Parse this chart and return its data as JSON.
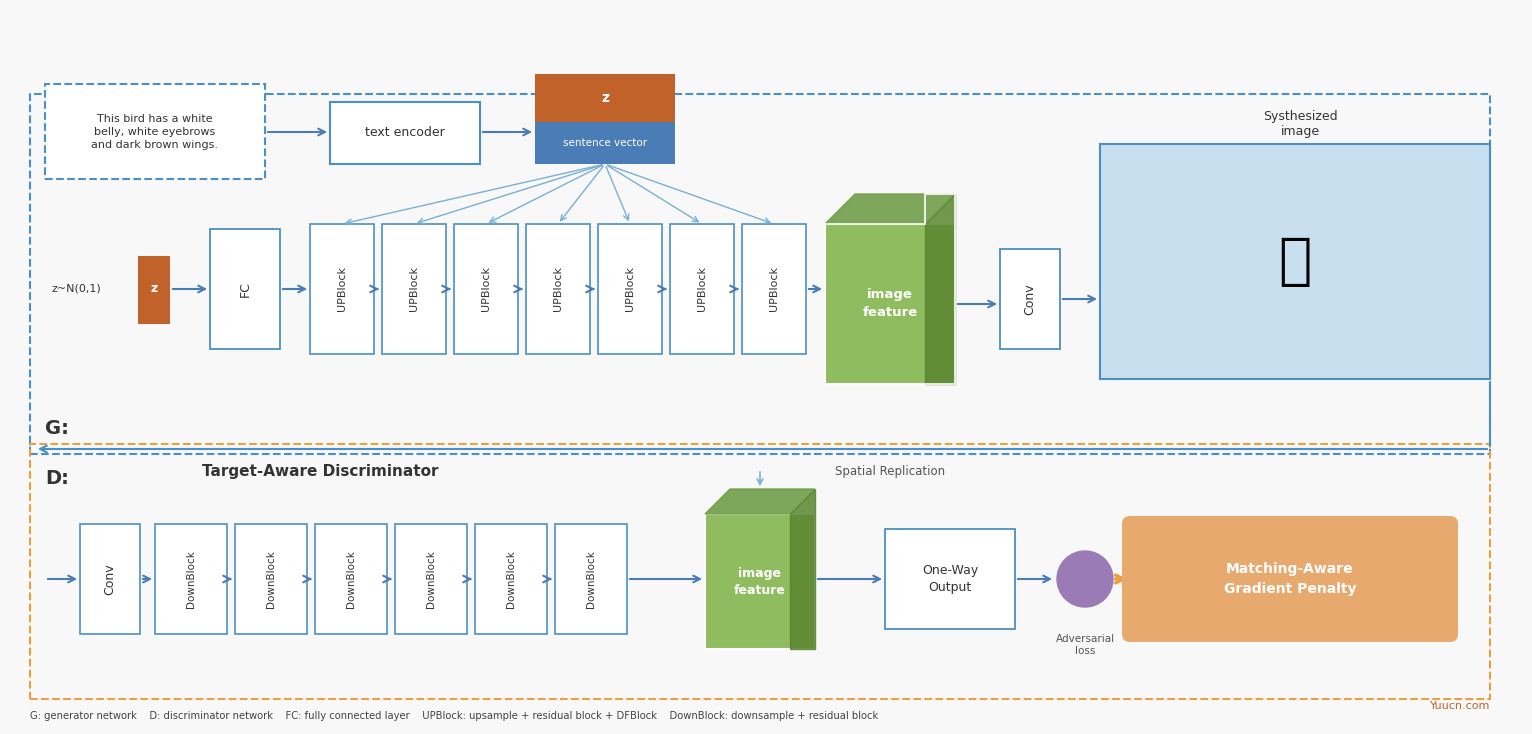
{
  "bg_color": "#f8f8f8",
  "title_text": "",
  "footnote": "G: generator network    D: discriminator network    FC: fully connected layer    UPBlock: upsample + residual block + DFBlock    DownBlock: downsample + residual block",
  "text_box_text": "This bird has a white\nbelly, white eyebrows\nand dark brown wings.",
  "text_encoder_label": "text encoder",
  "sentence_vector_label": "sentence vector",
  "z_label": "z",
  "z_noise_label": "z~N(0,1)",
  "z_small_label": "z",
  "fc_label": "FC",
  "upblock_labels": [
    "UPBlock",
    "UPBlock",
    "UPBlock",
    "UPBlock",
    "UPBlock",
    "UPBlock",
    "UPBlock"
  ],
  "image_feature_label": "image\nfeature",
  "conv_label": "Conv",
  "synth_label": "Systhesized\nimage",
  "g_label": "G:",
  "d_label": "D:",
  "discriminator_title": "Target-Aware Discriminator",
  "spatial_rep_label": "Spatial Replication",
  "conv_d_label": "Conv",
  "downblock_labels": [
    "DownBlock",
    "DownBlock",
    "DownBlock",
    "DownBlock",
    "DownBlock",
    "DownBlock"
  ],
  "image_feature_d_label": "image\nfeature",
  "oneway_label": "One-Way\nOutput",
  "adv_label": "Adversarial\nloss",
  "matching_label": "Matching-Aware\nGradient Penalty",
  "color_white": "#ffffff",
  "color_blue_border": "#4a90c4",
  "color_blue_light": "#aacde8",
  "color_orange_dark": "#c0622a",
  "color_orange_text": "#c0622a",
  "color_blue_sentence": "#4a7cb5",
  "color_green_feature": "#8fbc5e",
  "color_green_dark": "#6a9940",
  "color_orange_penalty": "#e8a96e",
  "color_orange_dashed": "#e8a040",
  "color_purple": "#9b7bb5",
  "color_text_dark": "#333333",
  "color_arrow": "#7ab0d4",
  "color_arrow_dark": "#4a7cb5"
}
